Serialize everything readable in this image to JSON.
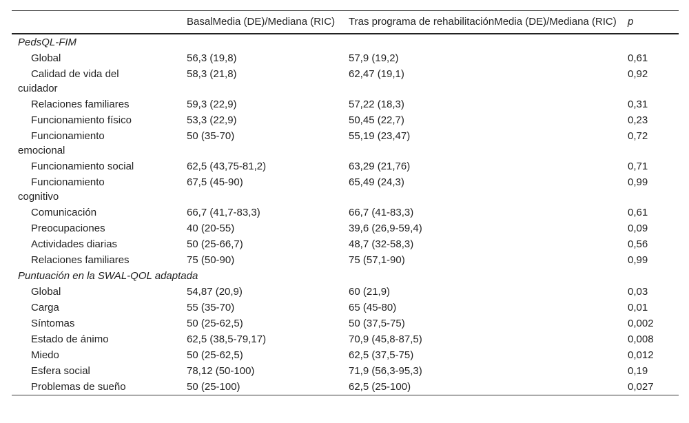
{
  "table": {
    "header": [
      "",
      "BasalMedia (DE)/Mediana (RIC)",
      "Tras programa de rehabilitaciónMedia (DE)/Mediana (RIC)",
      "p"
    ],
    "sections": [
      {
        "title": "PedsQL-FIM",
        "rows": [
          [
            "Global",
            "56,3 (19,8)",
            "57,9 (19,2)",
            "0,61"
          ],
          [
            "Calidad de vida del cuidador",
            "58,3 (21,8)",
            "62,47 (19,1)",
            "0,92"
          ],
          [
            "Relaciones familiares",
            "59,3 (22,9)",
            "57,22 (18,3)",
            "0,31"
          ],
          [
            "Funcionamiento físico",
            "53,3 (22,9)",
            "50,45 (22,7)",
            "0,23"
          ],
          [
            "Funcionamiento emocional",
            "50 (35-70)",
            "55,19 (23,47)",
            "0,72"
          ],
          [
            "Funcionamiento social",
            "62,5 (43,75-81,2)",
            "63,29 (21,76)",
            "0,71"
          ],
          [
            "Funcionamiento cognitivo",
            "67,5 (45-90)",
            "65,49 (24,3)",
            "0,99"
          ],
          [
            "Comunicación",
            "66,7 (41,7-83,3)",
            "66,7 (41-83,3)",
            "0,61"
          ],
          [
            "Preocupaciones",
            "40 (20-55)",
            "39,6 (26,9-59,4)",
            "0,09"
          ],
          [
            "Actividades diarias",
            "50 (25-66,7)",
            "48,7 (32-58,3)",
            "0,56"
          ],
          [
            "Relaciones familiares",
            "75 (50-90)",
            "75 (57,1-90)",
            "0,99"
          ]
        ]
      },
      {
        "title": "Puntuación en la SWAL-QOL adaptada",
        "rows": [
          [
            "Global",
            "54,87 (20,9)",
            "60 (21,9)",
            "0,03"
          ],
          [
            "Carga",
            "55 (35-70)",
            "65 (45-80)",
            "0,01"
          ],
          [
            "Síntomas",
            "50 (25-62,5)",
            "50 (37,5-75)",
            "0,002"
          ],
          [
            "Estado de ánimo",
            "62,5 (38,5-79,17)",
            "70,9 (45,8-87,5)",
            "0,008"
          ],
          [
            "Miedo",
            "50 (25-62,5)",
            "62,5 (37,5-75)",
            "0,012"
          ],
          [
            "Esfera social",
            "78,12 (50-100)",
            "71,9 (56,3-95,3)",
            "0,19"
          ],
          [
            "Problemas de sueño",
            "50 (25-100)",
            "62,5 (25-100)",
            "0,027"
          ]
        ]
      }
    ]
  }
}
